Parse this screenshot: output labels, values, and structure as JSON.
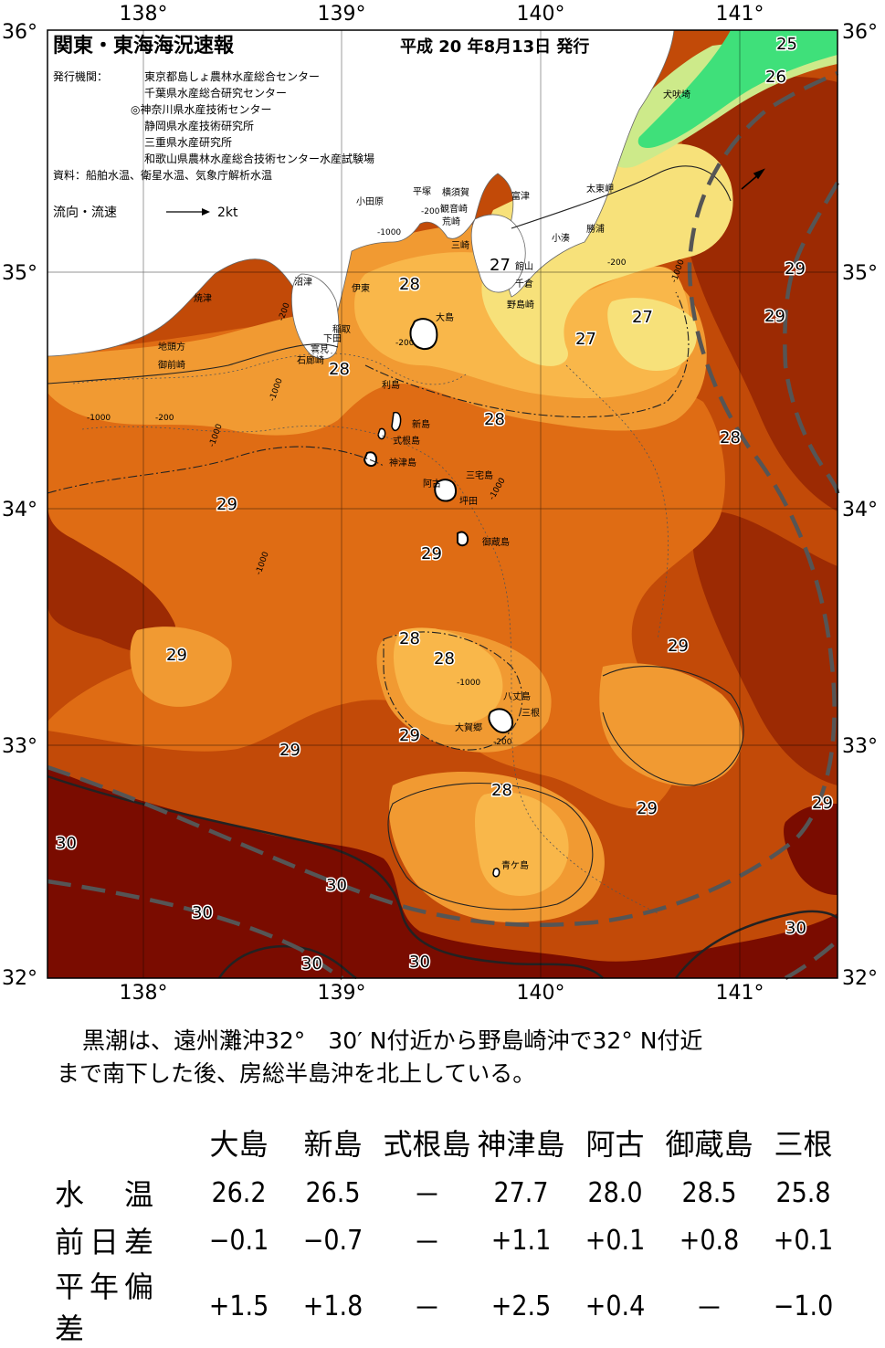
{
  "header": {
    "title": "関東・東海海況速報",
    "issue_date": "平成 20 年8月13日 発行"
  },
  "issuers": {
    "label": "発行機関：",
    "list": [
      "東京都島しょ農林水産総合センター",
      "千葉県水産総合研究センター",
      "◎神奈川県水産技術センター",
      "静岡県水産技術研究所",
      "三重県水産研究所",
      "和歌山県農林水産総合技術センター水産試験場"
    ],
    "sources": "資料：船舶水温、衛星水温、気象庁解析水温"
  },
  "legend": {
    "current_label": "流向・流速",
    "speed_label": "2kt"
  },
  "axes": {
    "lon_labels": [
      "138°",
      "139°",
      "140°",
      "141°"
    ],
    "lat_labels": [
      "36°",
      "35°",
      "34°",
      "33°",
      "32°"
    ]
  },
  "colors": {
    "sst_25": "#3fe07a",
    "sst_26": "#cdea8a",
    "sst_27": "#f7e17a",
    "sst_27_5": "#f9b74a",
    "sst_28": "#f19a32",
    "sst_28_5": "#df6c14",
    "sst_29": "#c24a08",
    "sst_29_5": "#9c2a03",
    "sst_30": "#7a0c00",
    "kuroshio_axis": "#555555"
  },
  "places": [
    "小田原",
    "平塚",
    "横須賀",
    "観音崎",
    "荒崎",
    "三崎",
    "富津",
    "館山",
    "千倉",
    "野島崎",
    "太東岬",
    "勝浦",
    "小湊",
    "犬吠埼",
    "沼津",
    "伊東",
    "焼津",
    "稲取",
    "下田",
    "雲見",
    "石廊崎",
    "地頭方",
    "御前崎",
    "大島",
    "利島",
    "新島",
    "式根島",
    "神津島",
    "三宅島",
    "阿古",
    "坪田",
    "御蔵島",
    "八丈島",
    "三根",
    "大賀郷",
    "青ケ島"
  ],
  "isotherm_labels": [
    "25",
    "26",
    "27",
    "27",
    "27",
    "28",
    "28",
    "28",
    "28",
    "28",
    "28",
    "28",
    "29",
    "29",
    "29",
    "29",
    "29",
    "29",
    "29",
    "29",
    "29",
    "29",
    "30",
    "30",
    "30",
    "30",
    "30",
    "30"
  ],
  "depth_labels": [
    "-200",
    "-200",
    "-200",
    "-200",
    "-200",
    "-200",
    "-1000",
    "-1000",
    "-1000",
    "-1000",
    "-1000",
    "-1000",
    "-1000",
    "-1000"
  ],
  "comment": {
    "line1": "黒潮は、遠州灘沖32°　30′ N付近から野島崎沖で32° N付近",
    "line2": "まで南下した後、房総半島沖を北上している。"
  },
  "table": {
    "headers": [
      "",
      "大島",
      "新島",
      "式根島",
      "神津島",
      "阿古",
      "御蔵島",
      "三根"
    ],
    "rows": [
      {
        "label": "水　温",
        "values": [
          "26.2",
          "26.5",
          "－",
          "27.7",
          "28.0",
          "28.5",
          "25.8"
        ]
      },
      {
        "label": "前日差",
        "values": [
          "−0.1",
          "−0.7",
          "－",
          "+1.1",
          "+0.1",
          "+0.8",
          "+0.1"
        ]
      },
      {
        "label": "平年偏差",
        "values": [
          "+1.5",
          "+1.8",
          "－",
          "+2.5",
          "+0.4",
          "－",
          "−1.0"
        ]
      }
    ]
  }
}
